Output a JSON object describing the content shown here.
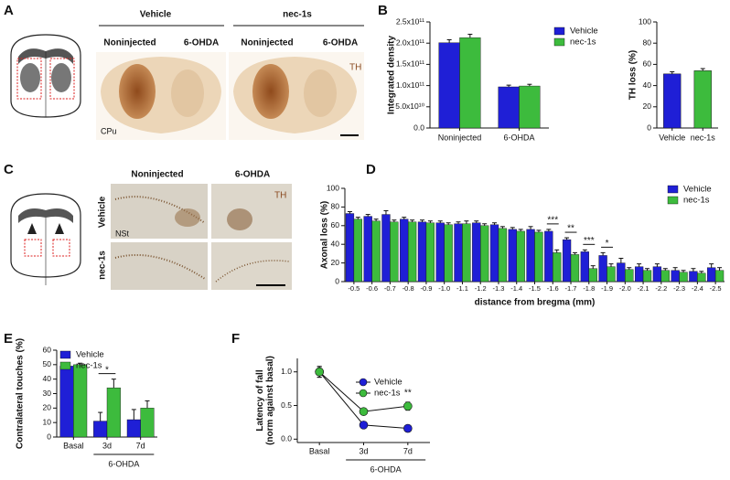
{
  "panel_labels": [
    "A",
    "B",
    "C",
    "D",
    "E",
    "F"
  ],
  "panel_a": {
    "groups": [
      "Vehicle",
      "nec-1s"
    ],
    "columns": [
      "Noninjected",
      "6-OHDA",
      "Noninjected",
      "6-OHDA"
    ],
    "stain": "TH",
    "region": "CPu"
  },
  "panel_c": {
    "columns": [
      "Noninjected",
      "6-OHDA"
    ],
    "rows": [
      "Vehicle",
      "nec-1s"
    ],
    "stain": "TH",
    "region": "NSt"
  },
  "chart_data": [
    {
      "type": "bar",
      "ylabel": [
        "Integrated density"
      ],
      "categories": [
        "Noninjected",
        "6-OHDA"
      ],
      "series": [
        {
          "name": "Vehicle",
          "color": "#1f1fd6",
          "values": [
            201000000000.0,
            97000000000.0
          ],
          "errors": [
            7000000000.0,
            4000000000.0
          ]
        },
        {
          "name": "nec-1s",
          "color": "#3dbb3d",
          "values": [
            213000000000.0,
            99000000000.0
          ],
          "errors": [
            8000000000.0,
            4000000000.0
          ]
        }
      ],
      "ylim": [
        0,
        250000000000.0
      ],
      "yticks": [
        {
          "value": 0,
          "label": "0.0"
        },
        {
          "value": 50000000000.0,
          "label": "5.0x10¹⁰"
        },
        {
          "value": 100000000000.0,
          "label": "1.0x10¹¹"
        },
        {
          "value": 150000000000.0,
          "label": "1.5x10¹¹"
        },
        {
          "value": 200000000000.0,
          "label": "2.0x10¹¹"
        },
        {
          "value": 250000000000.0,
          "label": "2.5x10¹¹"
        }
      ]
    },
    {
      "type": "bar",
      "ylabel": [
        "TH loss (%)"
      ],
      "categories": [
        "Vehicle",
        "nec-1s"
      ],
      "values": [
        51,
        54
      ],
      "errors": [
        2,
        2
      ],
      "colors": [
        "#1f1fd6",
        "#3dbb3d"
      ],
      "ylim": [
        0,
        100
      ],
      "yticks": [
        0,
        20,
        40,
        60,
        80,
        100
      ]
    },
    {
      "type": "bar",
      "ylabel": [
        "Axonal loss (%)"
      ],
      "xlabel": "distance from bregma (mm)",
      "categories": [
        "-0.5",
        "-0.6",
        "-0.7",
        "-0.8",
        "-0.9",
        "-1.0",
        "-1.1",
        "-1.2",
        "-1.3",
        "-1.4",
        "-1.5",
        "-1.6",
        "-1.7",
        "-1.8",
        "-1.9",
        "-2.0",
        "-2.1",
        "-2.2",
        "-2.3",
        "-2.4",
        "-2.5"
      ],
      "series": [
        {
          "name": "Vehicle",
          "color": "#1f1fd6",
          "values": [
            73,
            70,
            72,
            67,
            64,
            63,
            62,
            63,
            61,
            56,
            56,
            54,
            45,
            32,
            28,
            20,
            16,
            16,
            12,
            11,
            15
          ],
          "errors": [
            2,
            2,
            4,
            2,
            2,
            2,
            2,
            2,
            2,
            2,
            3,
            2,
            2,
            2,
            3,
            5,
            3,
            3,
            3,
            3,
            4
          ]
        },
        {
          "name": "nec-1s",
          "color": "#3dbb3d",
          "values": [
            67,
            65,
            64,
            64,
            63,
            61,
            62,
            60,
            57,
            54,
            53,
            31,
            29,
            14,
            16,
            13,
            12,
            12,
            10,
            9,
            12
          ],
          "errors": [
            2,
            2,
            2,
            2,
            2,
            2,
            3,
            2,
            2,
            2,
            2,
            3,
            2,
            3,
            3,
            2,
            2,
            2,
            2,
            2,
            3
          ]
        }
      ],
      "ylim": [
        0,
        100
      ],
      "yticks": [
        0,
        20,
        40,
        60,
        80,
        100
      ],
      "annotations": [
        {
          "text": "***",
          "x": "-1.6"
        },
        {
          "text": "**",
          "x": "-1.7"
        },
        {
          "text": "***",
          "x": "-1.8"
        },
        {
          "text": "*",
          "x": "-1.9"
        }
      ]
    },
    {
      "type": "bar",
      "ylabel": [
        "Contralateral touches (%)"
      ],
      "categories": [
        "Basal",
        "3d",
        "7d"
      ],
      "group_label": "6-OHDA",
      "series": [
        {
          "name": "Vehicle",
          "color": "#1f1fd6",
          "values": [
            49,
            11,
            12
          ],
          "errors": [
            1,
            6,
            7
          ]
        },
        {
          "name": "nec-1s",
          "color": "#3dbb3d",
          "values": [
            50,
            34,
            20
          ],
          "errors": [
            1,
            6,
            5
          ]
        }
      ],
      "ylim": [
        0,
        60
      ],
      "yticks": [
        0,
        10,
        20,
        30,
        40,
        50,
        60
      ],
      "annotations": [
        {
          "text": "*",
          "x": "3d"
        }
      ]
    },
    {
      "type": "line",
      "ylabel": [
        "Latency of fall",
        "(norm against basal)"
      ],
      "categories": [
        "Basal",
        "3d",
        "7d"
      ],
      "group_label": "6-OHDA",
      "series": [
        {
          "name": "Vehicle",
          "color": "#1f1fd6",
          "values": [
            1.0,
            0.21,
            0.16
          ],
          "errors": [
            0.08,
            0.02,
            0.02
          ]
        },
        {
          "name": "nec-1s",
          "color": "#3dbb3d",
          "values": [
            1.0,
            0.41,
            0.49
          ],
          "errors": [
            0.08,
            0.03,
            0.06
          ]
        }
      ],
      "ylim": [
        -0.05,
        1.2
      ],
      "yticks": [
        {
          "value": 0,
          "label": "0.0"
        },
        {
          "value": 0.5,
          "label": "0.5"
        },
        {
          "value": 1,
          "label": "1.0"
        }
      ],
      "annotations": [
        {
          "text": "**",
          "x": "7d"
        }
      ]
    }
  ]
}
